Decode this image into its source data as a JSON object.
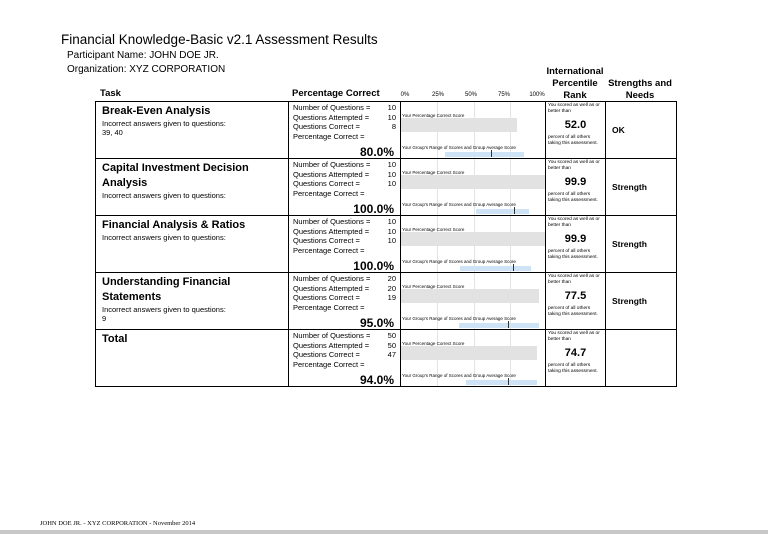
{
  "header": {
    "title": "Financial Knowledge-Basic v2.1 Assessment Results",
    "participant": "Participant Name: JOHN DOE JR.",
    "organization": "Organization: XYZ CORPORATION"
  },
  "columns": {
    "task": "Task",
    "percentage": "Percentage Correct",
    "rank": "International Percentile Rank",
    "strengths": "Strengths and Needs"
  },
  "chart_axis": [
    "0%",
    "25%",
    "50%",
    "75%",
    "100%"
  ],
  "labels": {
    "num": "Number of Questions =",
    "att": "Questions Attempted =",
    "cor": "Questions Correct =",
    "pct": "Percentage Correct =",
    "your_score": "Your Percentage Correct Score",
    "group": "Your Group's Range of Scores and Group Average Score",
    "rank_pre": "You scored as well as or better than",
    "rank_post": "percent of all others taking this assessment."
  },
  "colors": {
    "score_bar": "#e2e2e2",
    "group_range": "#cfe3f7"
  },
  "rows": [
    {
      "task": "Break-Even Analysis",
      "incorrect_label": "Incorrect answers given to questions:",
      "incorrect": "39, 40",
      "num": "10",
      "att": "10",
      "cor": "8",
      "pct": "80.0%",
      "score": 80,
      "range": [
        30,
        85
      ],
      "avg": 62,
      "rank": "52.0",
      "strength": "OK"
    },
    {
      "task": "Capital Investment Decision Analysis",
      "incorrect_label": "Incorrect answers given to questions:",
      "incorrect": "",
      "num": "10",
      "att": "10",
      "cor": "10",
      "pct": "100.0%",
      "score": 100,
      "range": [
        52,
        88
      ],
      "avg": 78,
      "rank": "99.9",
      "strength": "Strength"
    },
    {
      "task": "Financial Analysis & Ratios",
      "incorrect_label": "Incorrect answers given to questions:",
      "incorrect": "",
      "num": "10",
      "att": "10",
      "cor": "10",
      "pct": "100.0%",
      "score": 100,
      "range": [
        41,
        90
      ],
      "avg": 77,
      "rank": "99.9",
      "strength": "Strength"
    },
    {
      "task": "Understanding Financial Statements",
      "incorrect_label": "Incorrect answers given to questions:",
      "incorrect": "9",
      "num": "20",
      "att": "20",
      "cor": "19",
      "pct": "95.0%",
      "score": 95,
      "range": [
        40,
        95
      ],
      "avg": 74,
      "rank": "77.5",
      "strength": "Strength"
    },
    {
      "task": "Total",
      "incorrect_label": "",
      "incorrect": "",
      "num": "50",
      "att": "50",
      "cor": "47",
      "pct": "94.0%",
      "score": 94,
      "range": [
        45,
        94
      ],
      "avg": 74,
      "rank": "74.7",
      "strength": ""
    }
  ],
  "footer": "JOHN DOE JR. - XYZ CORPORATION - November 2014"
}
